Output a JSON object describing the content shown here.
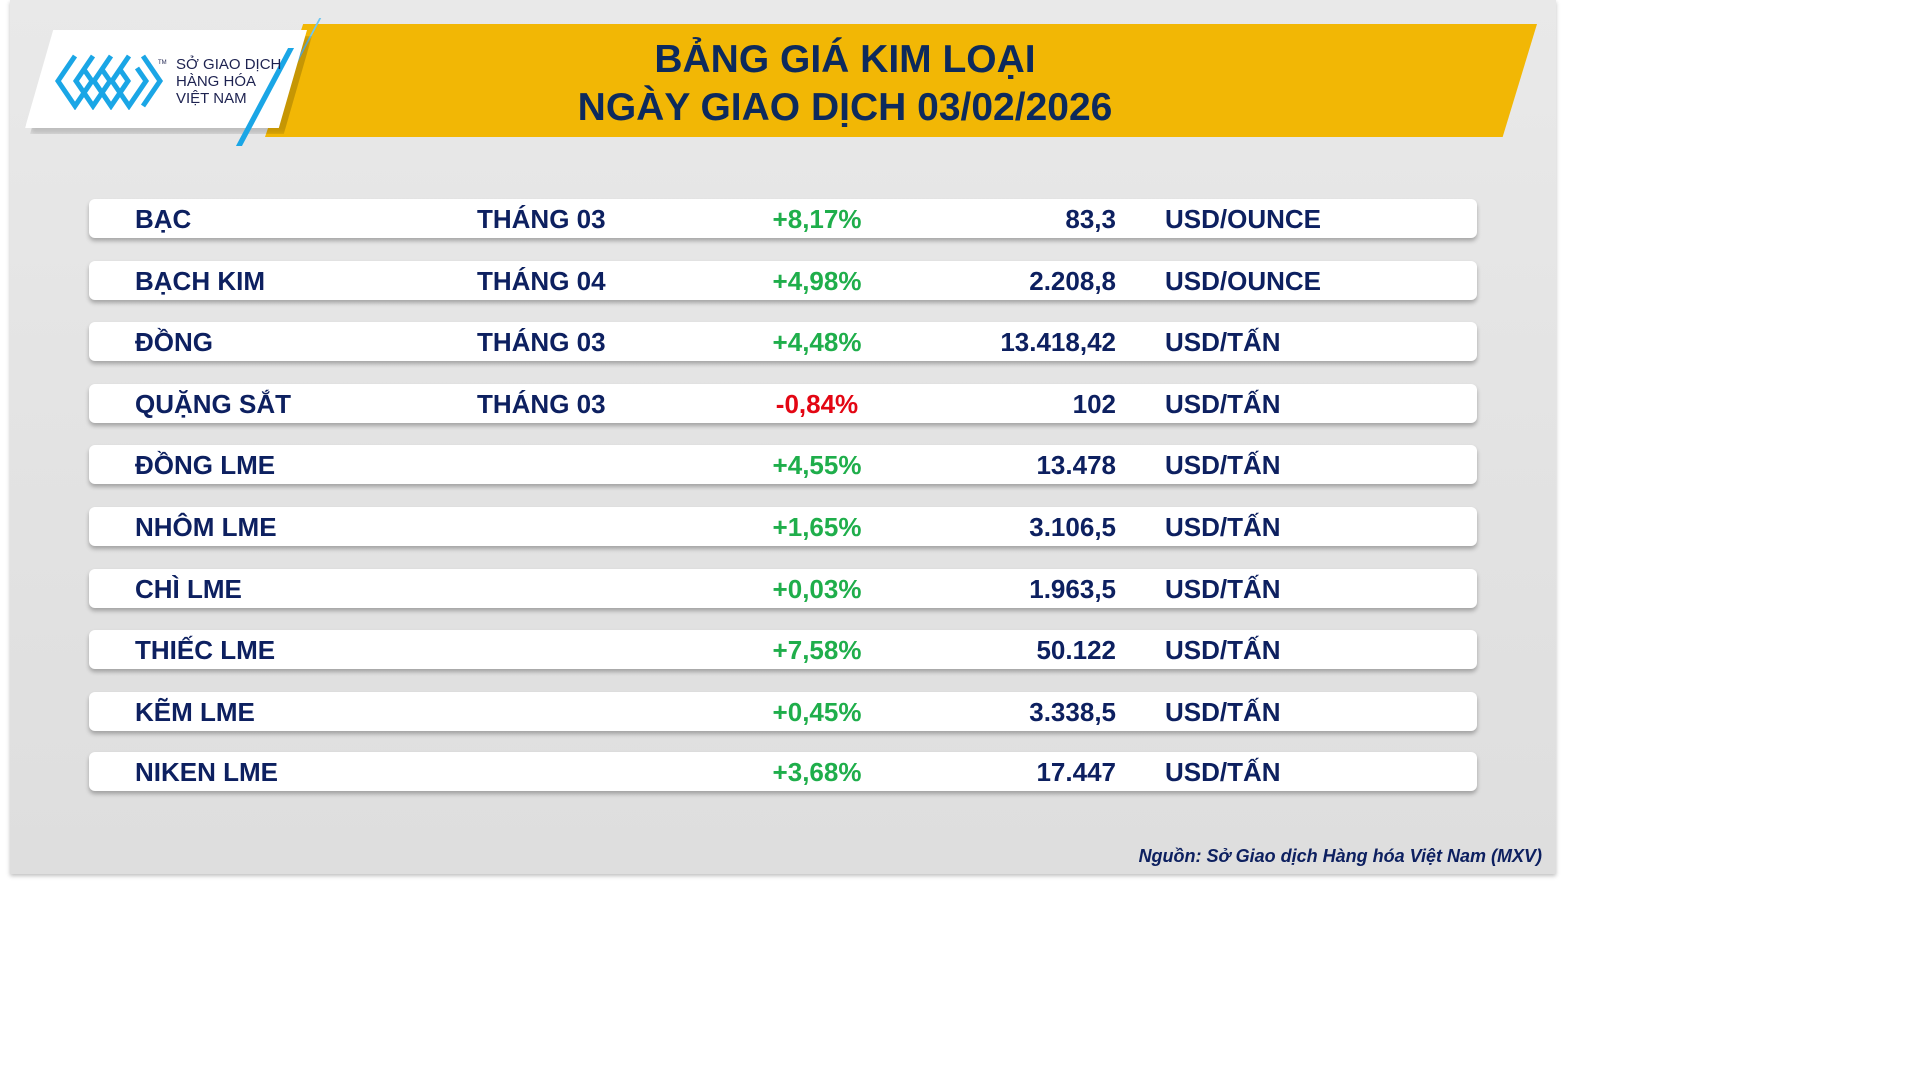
{
  "header": {
    "title_line1": "BẢNG GIÁ KIM LOẠI",
    "title_line2": "NGÀY GIAO DỊCH 03/02/2026"
  },
  "logo": {
    "line1": "SỞ GIAO DỊCH",
    "line2": "HÀNG HÓA",
    "line3": "VIỆT NAM",
    "tm": "TM",
    "icon": "mxv-logo-mark"
  },
  "colors": {
    "banner": "#f2b705",
    "text": "#0d2060",
    "up": "#1fae4b",
    "down": "#e30613",
    "logo_blue": "#1aa6e6"
  },
  "rows": [
    {
      "name": "BẠC",
      "month": "THÁNG 03",
      "change": "+8,17%",
      "dir": "up",
      "price": "83,3",
      "unit": "USD/OUNCE"
    },
    {
      "name": "BẠCH KIM",
      "month": "THÁNG 04",
      "change": "+4,98%",
      "dir": "up",
      "price": "2.208,8",
      "unit": "USD/OUNCE"
    },
    {
      "name": "ĐỒNG",
      "month": "THÁNG 03",
      "change": "+4,48%",
      "dir": "up",
      "price": "13.418,42",
      "unit": "USD/TẤN"
    },
    {
      "name": "QUẶNG SẮT",
      "month": "THÁNG 03",
      "change": "-0,84%",
      "dir": "down",
      "price": "102",
      "unit": "USD/TẤN"
    },
    {
      "name": "ĐỒNG LME",
      "month": "",
      "change": "+4,55%",
      "dir": "up",
      "price": "13.478",
      "unit": "USD/TẤN"
    },
    {
      "name": "NHÔM LME",
      "month": "",
      "change": "+1,65%",
      "dir": "up",
      "price": "3.106,5",
      "unit": "USD/TẤN"
    },
    {
      "name": "CHÌ LME",
      "month": "",
      "change": "+0,03%",
      "dir": "up",
      "price": "1.963,5",
      "unit": "USD/TẤN"
    },
    {
      "name": "THIẾC LME",
      "month": "",
      "change": "+7,58%",
      "dir": "up",
      "price": "50.122",
      "unit": "USD/TẤN"
    },
    {
      "name": "KẼM LME",
      "month": "",
      "change": "+0,45%",
      "dir": "up",
      "price": "3.338,5",
      "unit": "USD/TẤN"
    },
    {
      "name": "NIKEN LME",
      "month": "",
      "change": "+3,68%",
      "dir": "up",
      "price": "17.447",
      "unit": "USD/TẤN"
    }
  ],
  "footer": {
    "source": "Nguồn: Sở Giao dịch Hàng hóa Việt Nam (MXV)"
  }
}
